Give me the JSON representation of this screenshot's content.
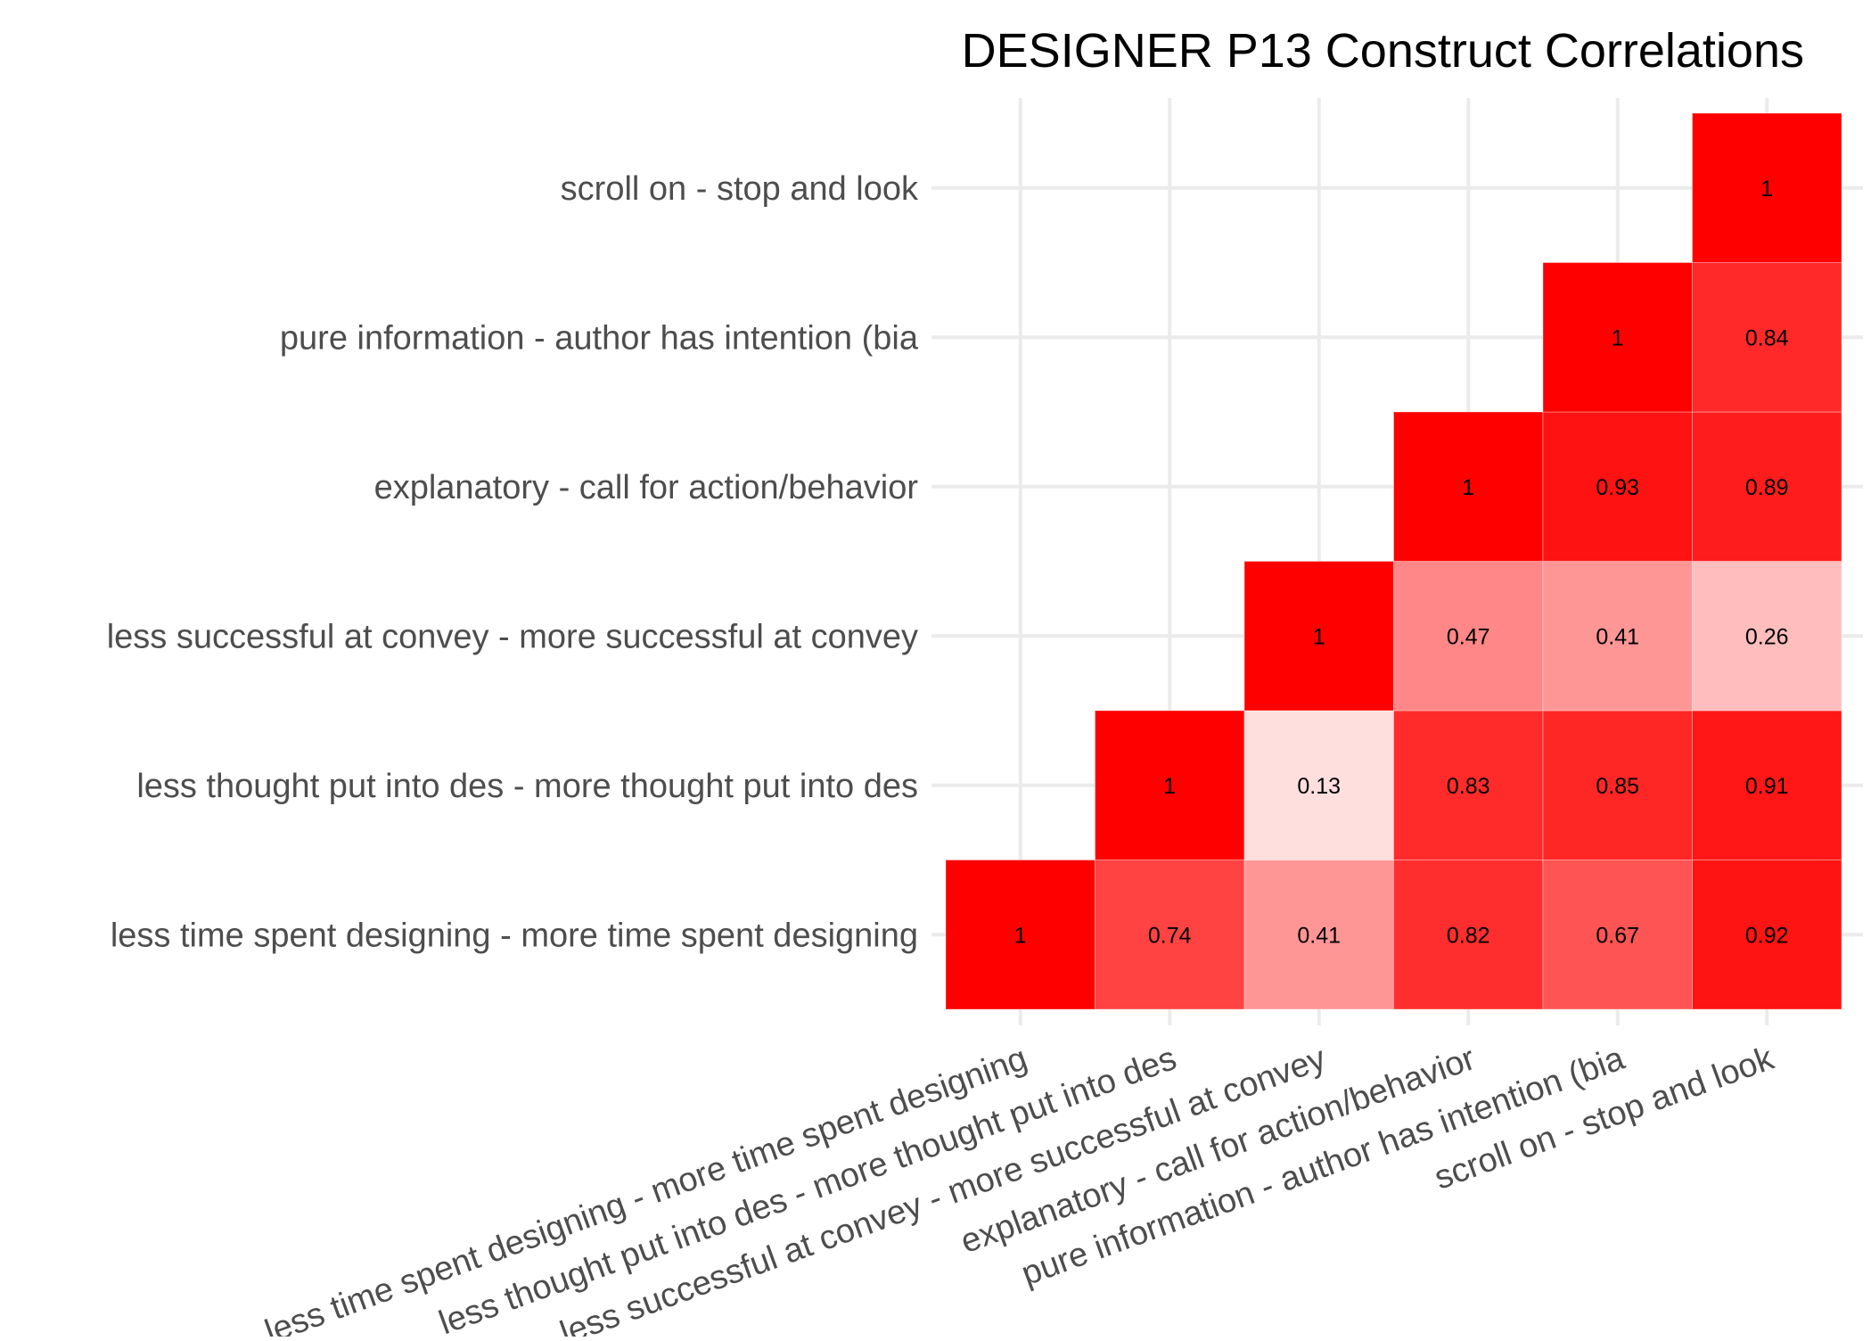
{
  "chart_data": {
    "type": "heatmap",
    "title": "DESIGNER P13 Construct Correlations",
    "xlabel": "",
    "ylabel": "",
    "labels": [
      "less time spent designing - more time spent designing",
      "less thought put into des - more thought put into des",
      "less successful at convey - more successful at convey",
      "explanatory - call for action/behavior ",
      "pure information - author has intention (bia",
      "scroll on - stop and look"
    ],
    "cells": [
      {
        "row": 0,
        "col": 0,
        "value": 1
      },
      {
        "row": 0,
        "col": 1,
        "value": 0.74
      },
      {
        "row": 0,
        "col": 2,
        "value": 0.41
      },
      {
        "row": 0,
        "col": 3,
        "value": 0.82
      },
      {
        "row": 0,
        "col": 4,
        "value": 0.67
      },
      {
        "row": 0,
        "col": 5,
        "value": 0.92
      },
      {
        "row": 1,
        "col": 1,
        "value": 1
      },
      {
        "row": 1,
        "col": 2,
        "value": 0.13
      },
      {
        "row": 1,
        "col": 3,
        "value": 0.83
      },
      {
        "row": 1,
        "col": 4,
        "value": 0.85
      },
      {
        "row": 1,
        "col": 5,
        "value": 0.91
      },
      {
        "row": 2,
        "col": 2,
        "value": 1
      },
      {
        "row": 2,
        "col": 3,
        "value": 0.47
      },
      {
        "row": 2,
        "col": 4,
        "value": 0.41
      },
      {
        "row": 2,
        "col": 5,
        "value": 0.26
      },
      {
        "row": 3,
        "col": 3,
        "value": 1
      },
      {
        "row": 3,
        "col": 4,
        "value": 0.93
      },
      {
        "row": 3,
        "col": 5,
        "value": 0.89
      },
      {
        "row": 4,
        "col": 4,
        "value": 1
      },
      {
        "row": 4,
        "col": 5,
        "value": 0.84
      },
      {
        "row": 5,
        "col": 5,
        "value": 1
      }
    ],
    "color_low": "#ffffff",
    "color_high": "#ff0000",
    "value_range": [
      0,
      1
    ],
    "grid": true,
    "legend": "none"
  }
}
